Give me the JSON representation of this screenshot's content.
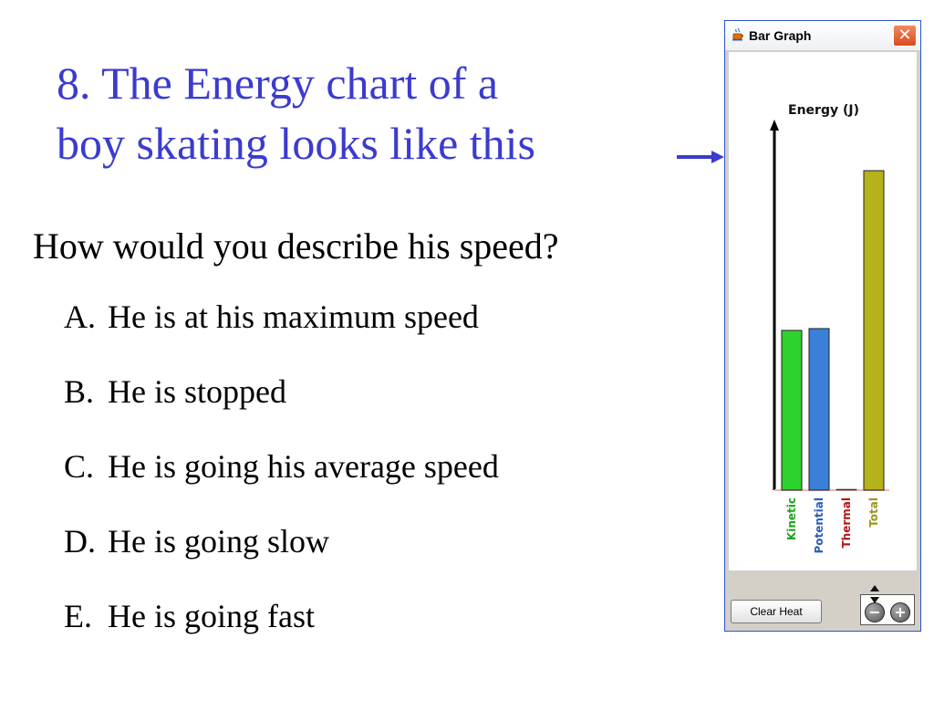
{
  "slide": {
    "title_line1": "8. The Energy chart of a",
    "title_line2": "boy skating looks like this",
    "question": "How would you describe his speed?",
    "options": [
      {
        "letter": "A.",
        "text": "He is at his maximum speed"
      },
      {
        "letter": "B.",
        "text": "He is stopped"
      },
      {
        "letter": "C.",
        "text": "He is going his average speed"
      },
      {
        "letter": "D.",
        "text": "He is going slow"
      },
      {
        "letter": "E.",
        "text": "He is going fast"
      }
    ]
  },
  "window": {
    "title": "Bar Graph",
    "close_glyph": "✕",
    "clear_heat_label": "Clear Heat",
    "zoom_out_glyph": "−",
    "zoom_in_glyph": "+"
  },
  "chart_data": {
    "type": "bar",
    "ylabel": "Energy (J)",
    "categories": [
      "Kinetic",
      "Potential",
      "Thermal",
      "Total"
    ],
    "values": [
      175,
      177,
      1,
      350
    ],
    "colors": [
      "#2ed22e",
      "#3a7fd8",
      "#b01818",
      "#b5b21a"
    ],
    "label_colors": [
      "#1ea01e",
      "#2a5cb8",
      "#b01818",
      "#9a9620"
    ],
    "ylim": [
      0,
      400
    ],
    "grid": false
  }
}
